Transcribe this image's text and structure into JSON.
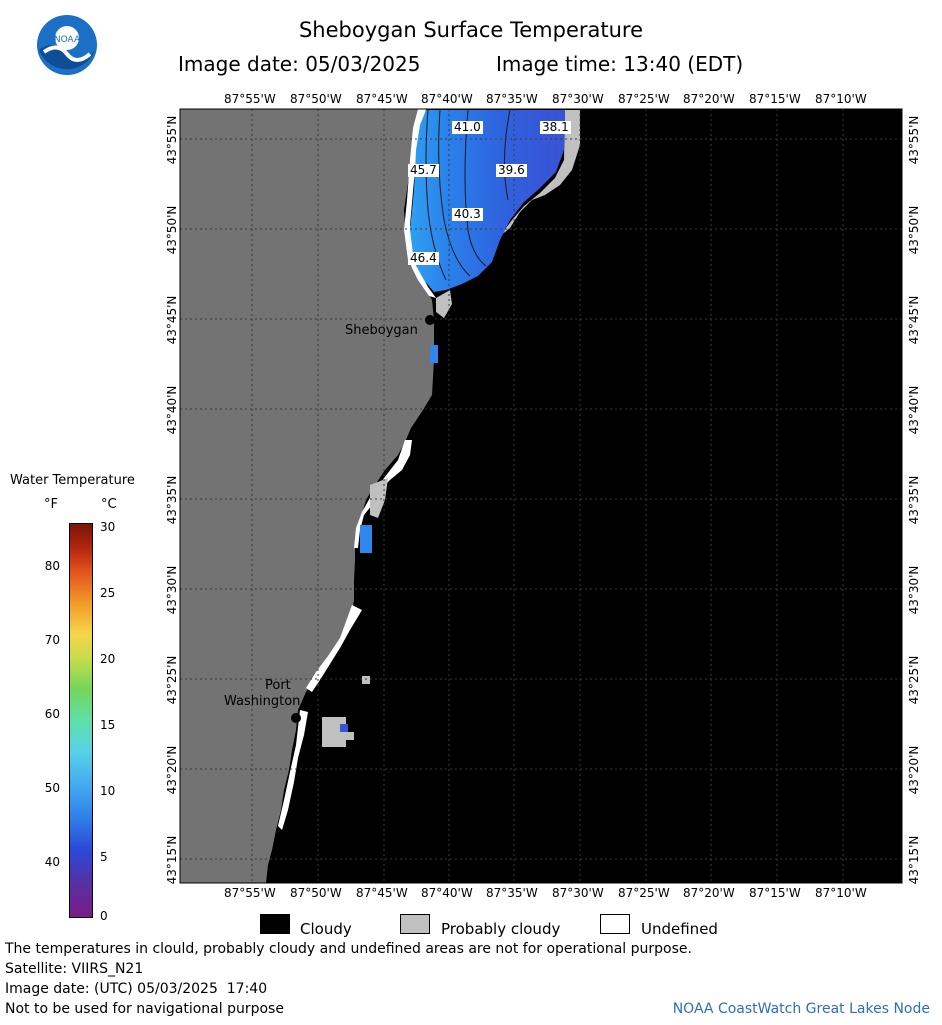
{
  "header": {
    "title": "Sheboygan Surface Temperature",
    "image_date": "Image date: 05/03/2025",
    "image_time": "Image time: 13:40 (EDT)"
  },
  "logo": {
    "text": "NOAA",
    "icon": "noaa-logo"
  },
  "map": {
    "top_lon_labels": [
      "87°55'W",
      "87°50'W",
      "87°45'W",
      "87°40'W",
      "87°35'W",
      "87°30'W",
      "87°25'W",
      "87°20'W",
      "87°15'W",
      "87°10'W"
    ],
    "lat_labels": [
      "43°55'N",
      "43°50'N",
      "43°45'N",
      "43°40'N",
      "43°35'N",
      "43°30'N",
      "43°25'N",
      "43°20'N",
      "43°15'N"
    ],
    "places": {
      "sheboygan": "Sheboygan",
      "port_washington_1": "Port",
      "port_washington_2": "Washington"
    },
    "contour_labels": [
      "41.0",
      "38.1",
      "45.7",
      "39.6",
      "40.3",
      "46.4"
    ],
    "colors": {
      "land": "#737373",
      "cloudy": "#000000",
      "probably_cloudy": "#c0c0c0",
      "undefined": "#ffffff",
      "water_warm": "#2a7de6",
      "water_cold": "#3a54d6"
    }
  },
  "legend": {
    "title": "Water Temperature",
    "unit_f": "°F",
    "unit_c": "°C",
    "f_ticks": [
      "80",
      "70",
      "60",
      "50",
      "40"
    ],
    "c_ticks": [
      "30",
      "25",
      "20",
      "15",
      "10",
      "5",
      "0"
    ]
  },
  "key": {
    "cloudy": "Cloudy",
    "probably_cloudy": "Probably cloudy",
    "undefined": "Undefined"
  },
  "footer": {
    "line1": "The temperatures in clould, probably cloudy and undefined areas are not for operational purpose.",
    "line2": "Satellite: VIIRS_N21",
    "line3": "Image date: (UTC) 05/03/2025  17:40",
    "line4": "Not to be used for navigational purpose",
    "credit": "NOAA CoastWatch Great Lakes Node"
  }
}
